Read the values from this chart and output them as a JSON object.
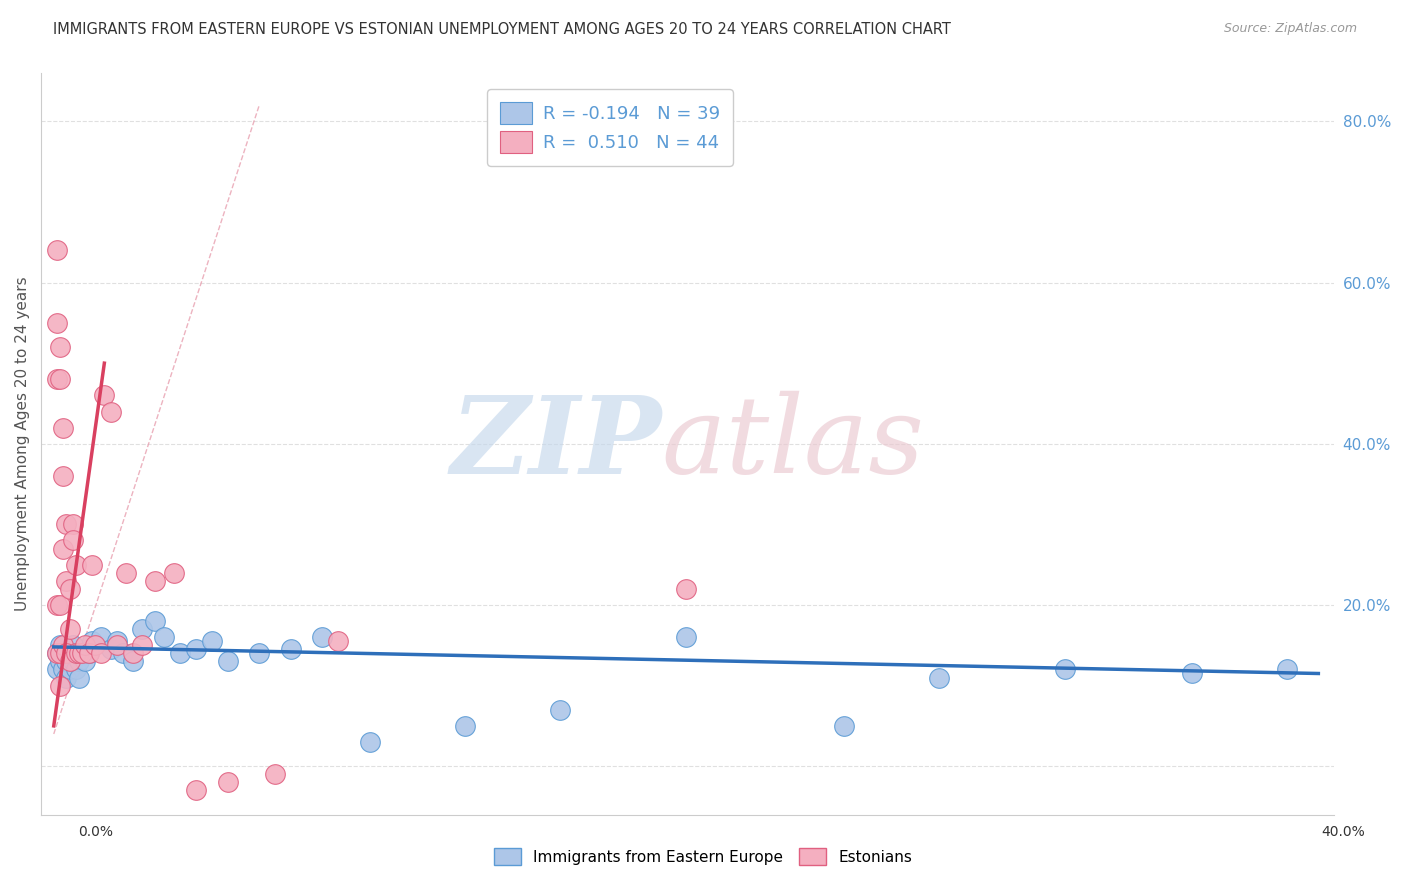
{
  "title": "IMMIGRANTS FROM EASTERN EUROPE VS ESTONIAN UNEMPLOYMENT AMONG AGES 20 TO 24 YEARS CORRELATION CHART",
  "source": "Source: ZipAtlas.com",
  "ylabel": "Unemployment Among Ages 20 to 24 years",
  "legend_label_blue": "Immigrants from Eastern Europe",
  "legend_label_pink": "Estonians",
  "blue_color": "#adc6e8",
  "pink_color": "#f4afc0",
  "blue_edge_color": "#5b9bd5",
  "pink_edge_color": "#e06080",
  "blue_line_color": "#2e6fba",
  "pink_line_color": "#d94060",
  "diag_color": "#e8a0b0",
  "grid_color": "#e0e0e0",
  "axis_color": "#cccccc",
  "text_color": "#333333",
  "source_color": "#999999",
  "right_axis_color": "#5b9bd5",
  "xlim": [
    -0.004,
    0.405
  ],
  "ylim": [
    -0.06,
    0.86
  ],
  "ytick_values": [
    0.0,
    0.2,
    0.4,
    0.6,
    0.8
  ],
  "blue_scatter_x": [
    0.001,
    0.001,
    0.002,
    0.002,
    0.003,
    0.003,
    0.004,
    0.004,
    0.005,
    0.005,
    0.006,
    0.006,
    0.007,
    0.007,
    0.008,
    0.008,
    0.009,
    0.01,
    0.011,
    0.012,
    0.015,
    0.018,
    0.02,
    0.022,
    0.025,
    0.028,
    0.032,
    0.035,
    0.04,
    0.045,
    0.05,
    0.055,
    0.065,
    0.075,
    0.085,
    0.1,
    0.13,
    0.16,
    0.2,
    0.25,
    0.28,
    0.32,
    0.36,
    0.39
  ],
  "blue_scatter_y": [
    0.14,
    0.12,
    0.13,
    0.15,
    0.14,
    0.12,
    0.11,
    0.13,
    0.14,
    0.12,
    0.13,
    0.15,
    0.14,
    0.12,
    0.13,
    0.11,
    0.14,
    0.13,
    0.14,
    0.155,
    0.16,
    0.145,
    0.155,
    0.14,
    0.13,
    0.17,
    0.18,
    0.16,
    0.14,
    0.145,
    0.155,
    0.13,
    0.14,
    0.145,
    0.16,
    0.03,
    0.05,
    0.07,
    0.16,
    0.05,
    0.11,
    0.12,
    0.115,
    0.12
  ],
  "pink_scatter_x": [
    0.001,
    0.001,
    0.001,
    0.001,
    0.001,
    0.002,
    0.002,
    0.002,
    0.002,
    0.002,
    0.003,
    0.003,
    0.003,
    0.003,
    0.004,
    0.004,
    0.004,
    0.005,
    0.005,
    0.005,
    0.006,
    0.006,
    0.007,
    0.007,
    0.008,
    0.009,
    0.01,
    0.011,
    0.012,
    0.013,
    0.015,
    0.016,
    0.018,
    0.02,
    0.023,
    0.025,
    0.028,
    0.032,
    0.038,
    0.045,
    0.055,
    0.07,
    0.09,
    0.2
  ],
  "pink_scatter_y": [
    0.64,
    0.55,
    0.48,
    0.2,
    0.14,
    0.52,
    0.48,
    0.2,
    0.14,
    0.1,
    0.42,
    0.36,
    0.27,
    0.15,
    0.3,
    0.23,
    0.14,
    0.22,
    0.17,
    0.13,
    0.3,
    0.28,
    0.25,
    0.14,
    0.14,
    0.14,
    0.15,
    0.14,
    0.25,
    0.15,
    0.14,
    0.46,
    0.44,
    0.15,
    0.24,
    0.14,
    0.15,
    0.23,
    0.24,
    -0.03,
    -0.02,
    -0.01,
    0.155,
    0.22
  ],
  "pink_trendline_x": [
    0.0,
    0.016
  ],
  "pink_trendline_y": [
    0.05,
    0.5
  ],
  "blue_trendline_x": [
    0.0,
    0.4
  ],
  "blue_trendline_y": [
    0.148,
    0.115
  ]
}
